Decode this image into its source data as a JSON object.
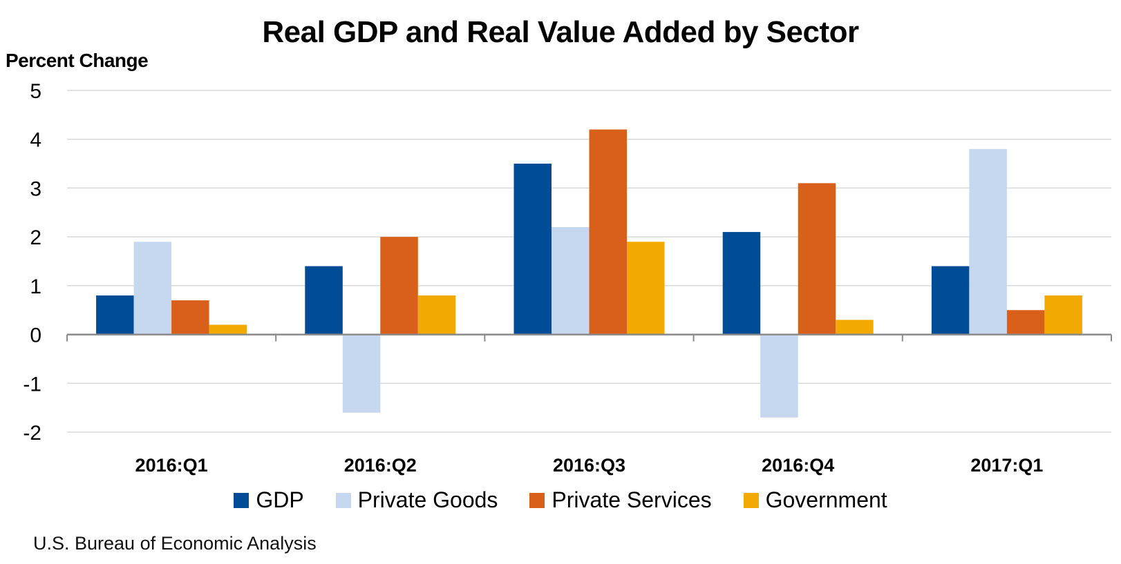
{
  "chart_data": {
    "type": "bar",
    "title": "Real GDP and Real Value Added by Sector",
    "xlabel": "",
    "ylabel": "Percent Change",
    "ylim": [
      -2,
      5
    ],
    "yticks": [
      5,
      4,
      3,
      2,
      1,
      0,
      -1,
      -2
    ],
    "grid": true,
    "legend_position": "bottom",
    "categories": [
      "2016:Q1",
      "2016:Q2",
      "2016:Q3",
      "2016:Q4",
      "2017:Q1"
    ],
    "series": [
      {
        "name": "GDP",
        "color": "#004C97",
        "values": [
          0.8,
          1.4,
          3.5,
          2.1,
          1.4
        ]
      },
      {
        "name": "Private Goods",
        "color": "#C5D8EF",
        "values": [
          1.9,
          -1.6,
          2.2,
          -1.7,
          3.8
        ]
      },
      {
        "name": "Private Services",
        "color": "#D9601A",
        "values": [
          0.7,
          2.0,
          4.2,
          3.1,
          0.5
        ]
      },
      {
        "name": "Government",
        "color": "#F2A900",
        "values": [
          0.2,
          0.8,
          1.9,
          0.3,
          0.8
        ]
      }
    ],
    "source": "U.S. Bureau of Economic Analysis"
  }
}
